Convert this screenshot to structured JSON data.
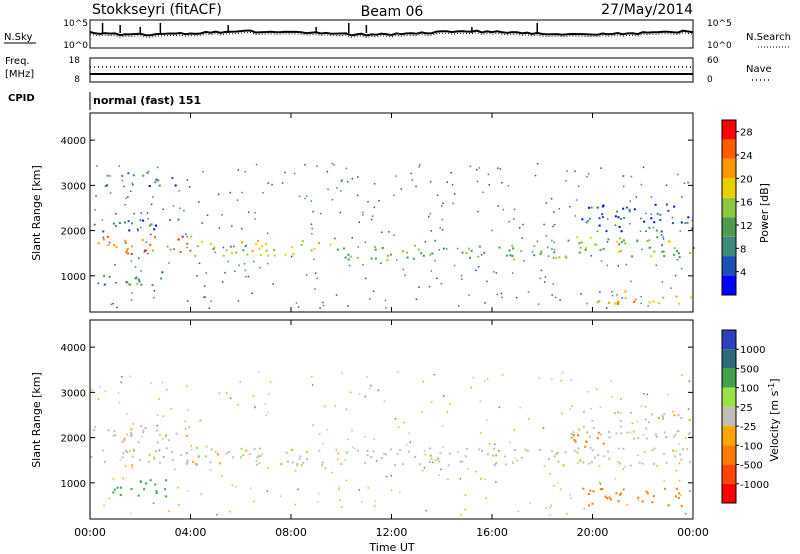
{
  "header": {
    "station": "Stokkseyri (fitACF)",
    "beam": "Beam 06",
    "date": "27/May/2014"
  },
  "noise_panel": {
    "left_label": "N.Sky",
    "right_label": "N.Search",
    "left_ticks": [
      "10^5",
      "10^0"
    ],
    "right_ticks": [
      "10^5",
      "10^0"
    ]
  },
  "freq_panel": {
    "left_label_1": "Freq.",
    "left_label_2": "[MHz]",
    "right_label": "Nave",
    "left_ticks": [
      "18",
      "8"
    ],
    "right_ticks": [
      "60",
      "0"
    ]
  },
  "cpid": {
    "label": "CPID",
    "value": "normal (fast) 151"
  },
  "colors": {
    "power_scale": [
      "#0000ff",
      "#1c4fb8",
      "#3f8a7d",
      "#4d9c4d",
      "#8fc73c",
      "#e6d000",
      "#ff9800",
      "#ff5a00",
      "#ff0000"
    ],
    "velocity_scale": [
      "#2e3fc0",
      "#2d6a7c",
      "#3fa348",
      "#9be04a",
      "#c0c0b6",
      "#ffa500",
      "#ff7a00",
      "#ff4500",
      "#ff0000"
    ]
  },
  "chart_data": [
    {
      "type": "heatmap",
      "name": "power",
      "ylabel": "Slant Range [km]",
      "y_ticks": [
        1000,
        2000,
        3000,
        4000
      ],
      "ylim": [
        200,
        4600
      ],
      "colorbar_label": "Power [dB]",
      "colorbar_ticks": [
        "4",
        "8",
        "12",
        "16",
        "20",
        "24",
        "28"
      ],
      "colorbar_range": [
        0,
        30
      ],
      "bands": [
        {
          "t_start": 0.0,
          "t_end": 4.0,
          "r_start": 1500,
          "r_end": 1900,
          "level": 24
        },
        {
          "t_start": 4.0,
          "t_end": 10.0,
          "r_start": 1450,
          "r_end": 1800,
          "level": 16
        },
        {
          "t_start": 10.0,
          "t_end": 19.0,
          "r_start": 1350,
          "r_end": 1700,
          "level": 12
        },
        {
          "t_start": 19.0,
          "t_end": 24.0,
          "r_start": 1400,
          "r_end": 1900,
          "level": 14
        },
        {
          "t_start": 0.0,
          "t_end": 3.5,
          "r_start": 2000,
          "r_end": 2300,
          "level": 6
        },
        {
          "t_start": 0.5,
          "t_end": 3.5,
          "r_start": 3000,
          "r_end": 3300,
          "level": 6
        },
        {
          "t_start": 0.5,
          "t_end": 3.5,
          "r_start": 800,
          "r_end": 1100,
          "level": 10
        },
        {
          "t_start": 19.5,
          "t_end": 24.0,
          "r_start": 2000,
          "r_end": 2600,
          "level": 6
        },
        {
          "t_start": 20.0,
          "t_end": 24.0,
          "r_start": 400,
          "r_end": 700,
          "level": 20
        }
      ]
    },
    {
      "type": "heatmap",
      "name": "velocity",
      "ylabel": "Slant Range [km]",
      "xlabel": "Time UT",
      "y_ticks": [
        1000,
        2000,
        3000,
        4000
      ],
      "ylim": [
        200,
        4600
      ],
      "x_ticks": [
        "00:00",
        "04:00",
        "08:00",
        "12:00",
        "16:00",
        "20:00",
        "00:00"
      ],
      "xlim_hours": [
        0,
        24
      ],
      "colorbar_label": "Velocity [m s^-1]",
      "colorbar_ticks": [
        "1000",
        "500",
        "100",
        "25",
        "-25",
        "-100",
        "-500",
        "-1000"
      ],
      "bands": [
        {
          "t_start": 0.0,
          "t_end": 24.0,
          "r_start": 1400,
          "r_end": 1800,
          "velocity": 0
        },
        {
          "t_start": 0.0,
          "t_end": 4.0,
          "r_start": 1900,
          "r_end": 2300,
          "velocity": 0
        },
        {
          "t_start": 0.3,
          "t_end": 3.0,
          "r_start": 700,
          "r_end": 1100,
          "velocity": 150
        },
        {
          "t_start": 19.0,
          "t_end": 24.0,
          "r_start": 2000,
          "r_end": 2600,
          "velocity": 0
        },
        {
          "t_start": 19.5,
          "t_end": 24.0,
          "r_start": 500,
          "r_end": 900,
          "velocity": -300
        },
        {
          "t_start": 19.0,
          "t_end": 20.5,
          "r_start": 1800,
          "r_end": 2200,
          "velocity": -300
        }
      ]
    }
  ]
}
